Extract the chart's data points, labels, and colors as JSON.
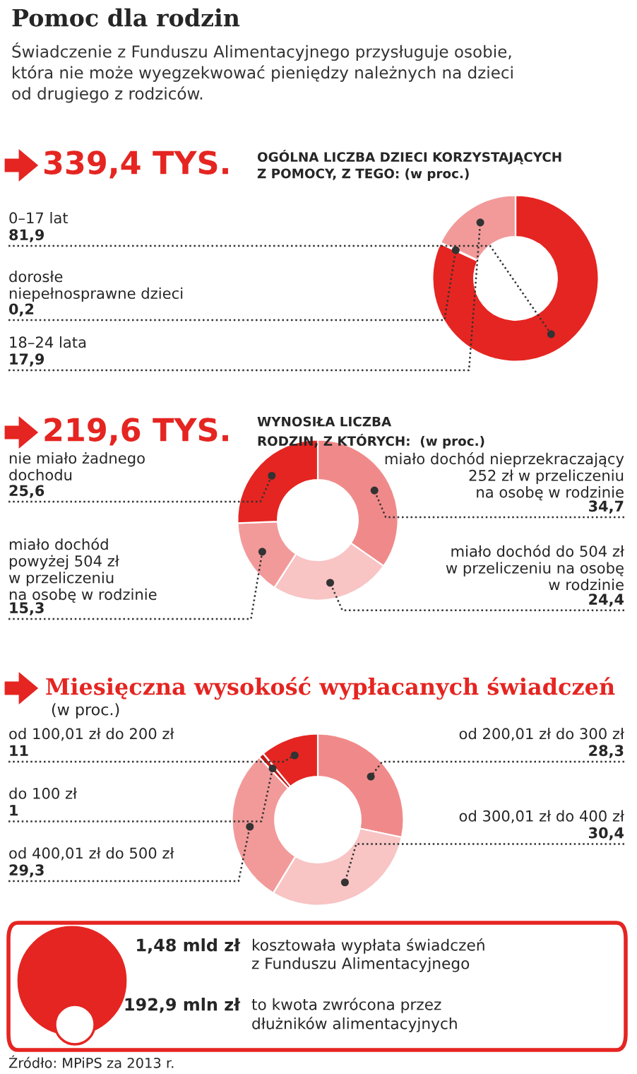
{
  "chart_data": [
    {
      "type": "donut",
      "title": "Pomoc dla rodzin",
      "subtitle": "Świadczenie z Funduszu Alimentacyjnego przysługuje osobie,\nktóra nie może wyegzekwować pieniędzy należnych na dzieci\nod drugiego z rodziców.",
      "annotations": [
        "339,4 TYS.",
        "OGÓLNA LICZBA DZIECI KORZYSTAJĄCYCH\nZ POMOCY, Z TEGO: (w proc.)"
      ],
      "categories": [
        "0–17 lat",
        "dorosłe\nniepełnosprawne dzieci",
        "18–24 lata"
      ],
      "values": [
        81.9,
        0.2,
        17.9
      ],
      "colors": [
        "#e52521",
        "#f6c8c8",
        "#f29a9a"
      ],
      "value_labels": [
        "81,9",
        "0,2",
        "17,9"
      ]
    },
    {
      "type": "donut",
      "annotations": [
        "219,6 TYS.",
        "WYNOSIŁA LICZBA\nRODZIN, Z KTÓRYCH:  (w proc.)"
      ],
      "categories": [
        "miało dochód nieprzekraczający\n252 zł w przeliczeniu\nna osobę w rodzinie",
        "miało dochód do 504 zł\nw przeliczeniu na osobę\nw rodzinie",
        "miało dochód\npowyżej 504 zł\nw przeliczeniu\nna osobę w rodzinie",
        "nie miało żadnego\ndochodu"
      ],
      "values": [
        34.7,
        24.4,
        15.3,
        25.6
      ],
      "colors": [
        "#f08a8a",
        "#f8c4c4",
        "#f29a9a",
        "#e52521"
      ],
      "value_labels": [
        "34,7",
        "24,4",
        "15,3",
        "25,6"
      ]
    },
    {
      "type": "donut",
      "title": "Miesięczna wysokość wypłacanych świadczeń",
      "subtitle": "(w proc.)",
      "categories": [
        "od 200,01 zł do 300 zł",
        "od 300,01 zł do 400 zł",
        "od 400,01 zł do 500 zł",
        "do 100 zł",
        "od 100,01 zł do 200 zł"
      ],
      "values": [
        28.3,
        30.4,
        29.3,
        1,
        11
      ],
      "colors": [
        "#f08a8a",
        "#f8c4c4",
        "#f29a9a",
        "#c41a17",
        "#e52521"
      ],
      "value_labels": [
        "28,3",
        "30,4",
        "29,3",
        "1",
        "11"
      ]
    },
    {
      "type": "other",
      "annotations": [
        "1,48 mld zł",
        "kosztowała wypłata świadczeń\nz Funduszu Alimentacyjnego",
        "192,9 mln zł",
        "to kwota zwrócona przez\ndłużników alimentacyjnych",
        "Źródło: MPiPS za 2013 r."
      ]
    }
  ]
}
